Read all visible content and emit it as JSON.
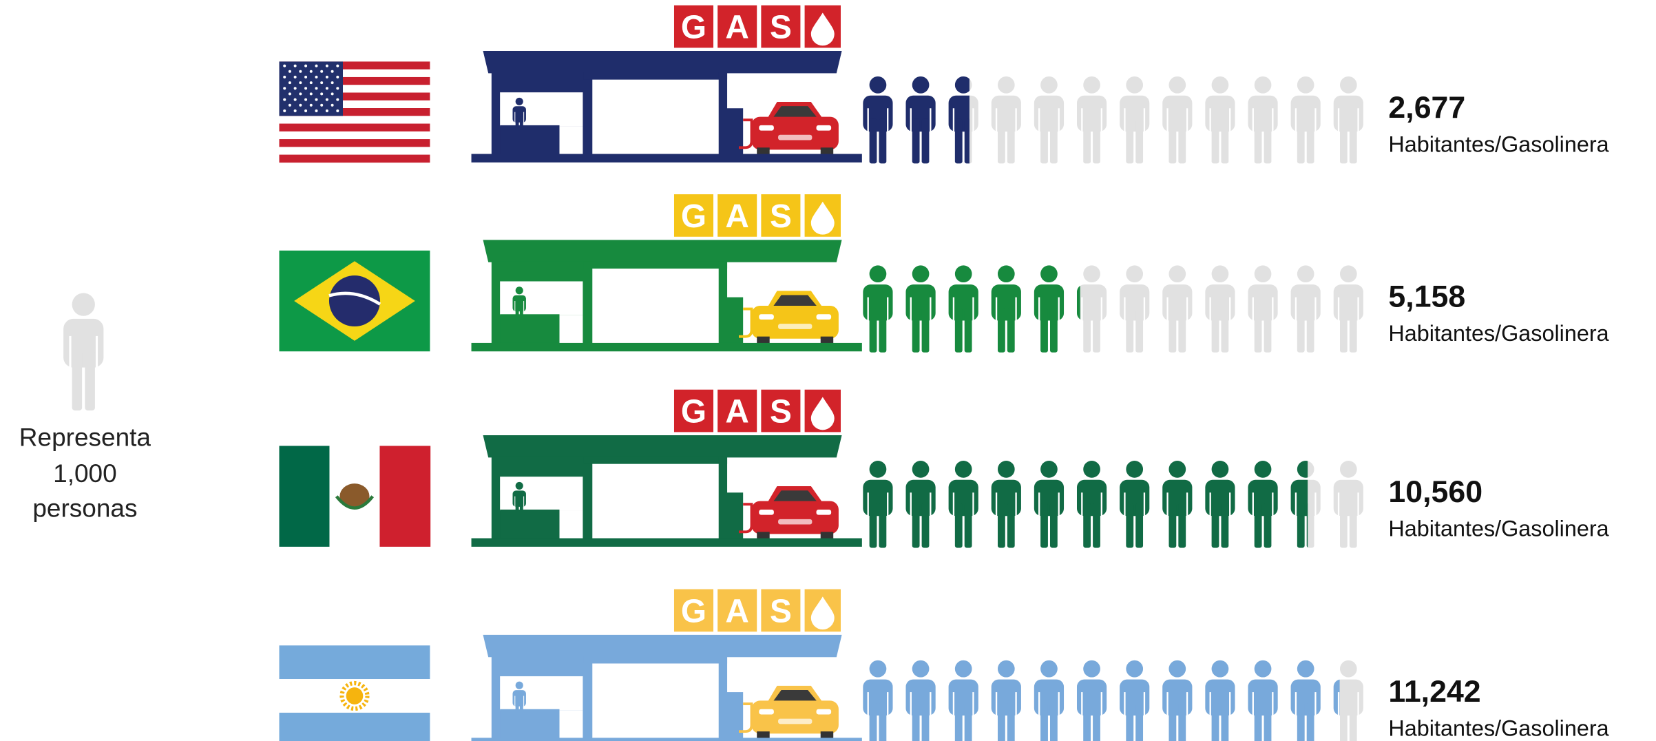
{
  "chart_data": {
    "type": "pictogram",
    "categories": [
      null,
      null,
      null,
      null
    ],
    "values": [
      2677,
      5158,
      10560,
      11242
    ],
    "value_labels": [
      "2,677",
      "5,158",
      "10,560",
      "11,242"
    ],
    "value_unit": "Habitantes/Gasolinera",
    "colors": [
      "#1f2d6b",
      "#178a3e",
      "#116b45",
      "#78a9db"
    ],
    "empty_color": "#e1e1e1",
    "unit_value": 1000,
    "unit_label": [
      "Representa",
      "1,000",
      "personas"
    ],
    "sign_letters": [
      "G",
      "A",
      "S"
    ]
  }
}
